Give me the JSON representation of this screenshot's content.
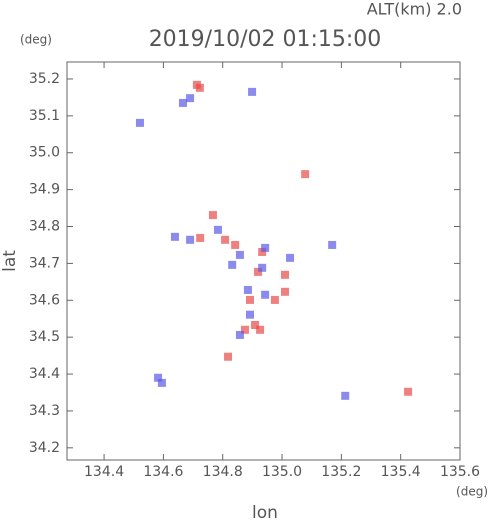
{
  "chart_data": {
    "type": "scatter",
    "title": "2019/10/02 01:15:00",
    "subtitle": "ALT(km) 2.0",
    "y_unit": "(deg)",
    "x_unit": "(deg)",
    "xlabel": "lon",
    "ylabel": "lat",
    "xlim": [
      134.275,
      135.6
    ],
    "ylim": [
      34.167,
      35.246
    ],
    "xticks": [
      134.4,
      134.6,
      134.8,
      {
        "value": 135,
        "label": "135.0"
      },
      135.2,
      135.4,
      135.6
    ],
    "yticks": [
      34.2,
      34.3,
      34.4,
      34.5,
      34.6,
      34.7,
      34.8,
      34.9,
      {
        "value": 35,
        "label": "35.0"
      },
      35.1,
      35.2
    ],
    "series": [
      {
        "color": "#e84a4a",
        "x": [
          134.713,
          134.723,
          135.078,
          134.767,
          134.808,
          134.842,
          134.933,
          134.919,
          135.01,
          134.892,
          134.976,
          134.909,
          134.875,
          134.926,
          134.818,
          135.425,
          134.724,
          135.01
        ],
        "y": [
          35.184,
          35.176,
          34.942,
          34.831,
          34.764,
          34.75,
          34.731,
          34.677,
          34.669,
          34.601,
          34.601,
          34.533,
          34.52,
          34.52,
          34.447,
          34.352,
          34.769,
          34.623
        ]
      },
      {
        "color": "#5a5ae6",
        "x": [
          134.666,
          134.69,
          134.899,
          134.639,
          134.69,
          134.784,
          134.858,
          134.943,
          134.832,
          134.933,
          135.027,
          135.169,
          134.885,
          134.943,
          134.892,
          134.858,
          134.582,
          134.595,
          135.213,
          134.521
        ],
        "y": [
          35.135,
          35.148,
          35.165,
          34.772,
          34.764,
          34.791,
          34.723,
          34.742,
          34.696,
          34.688,
          34.715,
          34.75,
          34.628,
          34.615,
          34.561,
          34.506,
          34.39,
          34.376,
          34.341,
          35.081
        ]
      }
    ]
  }
}
